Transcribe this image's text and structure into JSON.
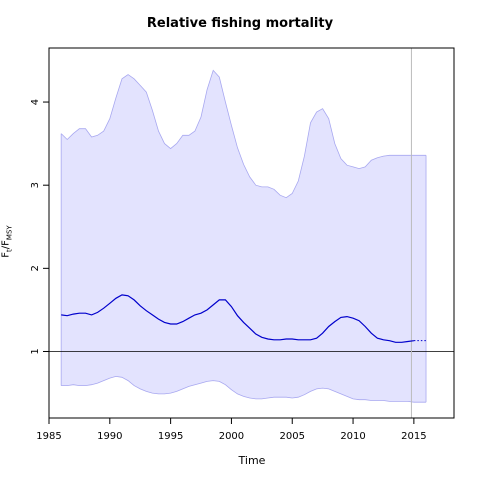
{
  "chart_data": {
    "type": "area",
    "title": "Relative fishing mortality",
    "xlabel": "Time",
    "ylabel": {
      "main": "F",
      "sub1": "t",
      "sep": "/F",
      "sub2": "MSY"
    },
    "xlim": [
      1985,
      2018.3
    ],
    "ylim": [
      0.2,
      4.65
    ],
    "xticks": [
      1985,
      1990,
      1995,
      2000,
      2005,
      2010,
      2015
    ],
    "yticks": [
      1,
      2,
      3,
      4
    ],
    "reference_hline": 1,
    "reference_vline": 2014.8,
    "colors": {
      "band_fill": "#e3e3fe",
      "band_edge": "#a8a8f0",
      "line": "#0000cc",
      "ref": "#000000",
      "vline": "#bbbbbb"
    },
    "series": [
      {
        "name": "",
        "x": [
          1986,
          1986.5,
          1987,
          1987.5,
          1988,
          1988.5,
          1989,
          1989.5,
          1990,
          1990.5,
          1991,
          1991.5,
          1992,
          1992.5,
          1993,
          1993.5,
          1994,
          1994.5,
          1995,
          1995.5,
          1996,
          1996.5,
          1997,
          1997.5,
          1998,
          1998.5,
          1999,
          1999.5,
          2000,
          2000.5,
          2001,
          2001.5,
          2002,
          2002.5,
          2003,
          2003.5,
          2004,
          2004.5,
          2005,
          2005.5,
          2006,
          2006.5,
          2007,
          2007.5,
          2008,
          2008.5,
          2009,
          2009.5,
          2010,
          2010.5,
          2011,
          2011.5,
          2012,
          2012.5,
          2013,
          2013.5,
          2014,
          2014.5,
          2015
        ],
        "y": [
          1.44,
          1.43,
          1.45,
          1.46,
          1.46,
          1.44,
          1.47,
          1.52,
          1.58,
          1.64,
          1.68,
          1.67,
          1.62,
          1.55,
          1.49,
          1.44,
          1.39,
          1.35,
          1.33,
          1.33,
          1.36,
          1.4,
          1.44,
          1.46,
          1.5,
          1.56,
          1.62,
          1.62,
          1.54,
          1.43,
          1.35,
          1.28,
          1.21,
          1.17,
          1.15,
          1.14,
          1.14,
          1.15,
          1.15,
          1.14,
          1.14,
          1.14,
          1.16,
          1.22,
          1.3,
          1.36,
          1.41,
          1.42,
          1.4,
          1.37,
          1.3,
          1.22,
          1.16,
          1.14,
          1.13,
          1.11,
          1.11,
          1.12,
          1.13
        ]
      }
    ],
    "projection": {
      "x": [
        2015,
        2016
      ],
      "y": [
        1.13,
        1.13
      ],
      "style": "dotted"
    },
    "band": {
      "x": [
        1986,
        1986.5,
        1987,
        1987.5,
        1988,
        1988.5,
        1989,
        1989.5,
        1990,
        1990.5,
        1991,
        1991.5,
        1992,
        1992.5,
        1993,
        1993.5,
        1994,
        1994.5,
        1995,
        1995.5,
        1996,
        1996.5,
        1997,
        1997.5,
        1998,
        1998.5,
        1999,
        1999.5,
        2000,
        2000.5,
        2001,
        2001.5,
        2002,
        2002.5,
        2003,
        2003.5,
        2004,
        2004.5,
        2005,
        2005.5,
        2006,
        2006.5,
        2007,
        2007.5,
        2008,
        2008.5,
        2009,
        2009.5,
        2010,
        2010.5,
        2011,
        2011.5,
        2012,
        2012.5,
        2013,
        2013.5,
        2014,
        2014.5,
        2015,
        2015.5,
        2016
      ],
      "upper": [
        3.62,
        3.55,
        3.62,
        3.68,
        3.68,
        3.58,
        3.6,
        3.65,
        3.8,
        4.05,
        4.28,
        4.33,
        4.28,
        4.2,
        4.12,
        3.9,
        3.65,
        3.5,
        3.44,
        3.5,
        3.6,
        3.6,
        3.65,
        3.82,
        4.15,
        4.38,
        4.3,
        4.0,
        3.72,
        3.45,
        3.25,
        3.1,
        3.0,
        2.98,
        2.98,
        2.95,
        2.88,
        2.85,
        2.9,
        3.05,
        3.35,
        3.75,
        3.88,
        3.92,
        3.8,
        3.5,
        3.32,
        3.24,
        3.22,
        3.2,
        3.22,
        3.3,
        3.33,
        3.35,
        3.36,
        3.36,
        3.36,
        3.36,
        3.36,
        3.36,
        3.36
      ],
      "lower": [
        0.59,
        0.59,
        0.6,
        0.59,
        0.59,
        0.6,
        0.62,
        0.65,
        0.68,
        0.7,
        0.69,
        0.65,
        0.59,
        0.55,
        0.52,
        0.5,
        0.49,
        0.49,
        0.5,
        0.52,
        0.55,
        0.58,
        0.6,
        0.62,
        0.64,
        0.65,
        0.64,
        0.6,
        0.54,
        0.49,
        0.46,
        0.44,
        0.43,
        0.43,
        0.44,
        0.45,
        0.45,
        0.45,
        0.44,
        0.45,
        0.48,
        0.52,
        0.55,
        0.56,
        0.55,
        0.52,
        0.49,
        0.46,
        0.43,
        0.42,
        0.42,
        0.41,
        0.41,
        0.41,
        0.4,
        0.4,
        0.4,
        0.4,
        0.39,
        0.39,
        0.39
      ]
    }
  }
}
